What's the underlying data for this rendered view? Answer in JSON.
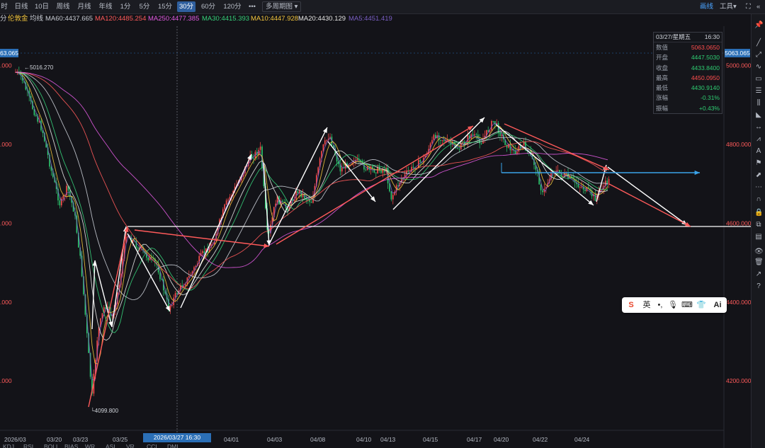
{
  "toolbar": {
    "timeframes": [
      {
        "label": "时",
        "active": false
      },
      {
        "label": "日线",
        "active": false
      },
      {
        "label": "10日",
        "active": false
      },
      {
        "label": "周线",
        "active": false
      },
      {
        "label": "月线",
        "active": false
      },
      {
        "label": "年线",
        "active": false
      },
      {
        "label": "1分",
        "active": false
      },
      {
        "label": "5分",
        "active": false
      },
      {
        "label": "15分",
        "active": false
      },
      {
        "label": "30分",
        "active": true
      },
      {
        "label": "60分",
        "active": false
      },
      {
        "label": "120分",
        "active": false
      }
    ],
    "more_label": "•••",
    "multi_period_label": "多周期图",
    "draw_label": "画线",
    "tools_label": "工具"
  },
  "indicator_row": {
    "prefix": "分",
    "symbol": "伦敦金",
    "ma_label": "均线",
    "items": [
      {
        "label": "MA60:4437.665",
        "color": "#c8ccd4"
      },
      {
        "label": "MA120:4485.254",
        "color": "#ff5a5a"
      },
      {
        "label": "MA250:4477.385",
        "color": "#e05ae0"
      },
      {
        "label": "MA30:4415.393",
        "color": "#36d07a"
      },
      {
        "label": "MA10:4447.928",
        "color": "#f2c53d"
      },
      {
        "label": "MA20:4430.129",
        "color": "#e6e6e6"
      },
      {
        "label": "MA5:4451.419",
        "color": "#7a5fc4"
      }
    ]
  },
  "price_axis_right": [
    "5000.000",
    "4800.000",
    "4600.000",
    "4400.000",
    "4200.000"
  ],
  "price_axis_left": [
    ".000",
    ".000",
    ".000",
    ".000",
    ".000"
  ],
  "current_price": {
    "left": "63.065",
    "right": "5063.065"
  },
  "annotations": {
    "high": "5016.270",
    "low": "4099.800"
  },
  "date_axis": [
    "2026/03",
    "03/20",
    "03/23",
    "03/25",
    "04/01",
    "04/03",
    "04/08",
    "04/10",
    "04/13",
    "04/15",
    "04/17",
    "04/20",
    "04/22",
    "04/24"
  ],
  "crosshair_date": "2026/03/27 16:30",
  "info_panel": {
    "date": "03/27/星期五",
    "time": "16:30",
    "rows": [
      {
        "label": "数值",
        "value": "5063.0650",
        "color": "#ff4d4d"
      },
      {
        "label": "开盘",
        "value": "4447.5030",
        "color": "#2ecc71"
      },
      {
        "label": "收盘",
        "value": "4433.8400",
        "color": "#2ecc71"
      },
      {
        "label": "最高",
        "value": "4450.0950",
        "color": "#ff4d4d"
      },
      {
        "label": "最低",
        "value": "4430.9140",
        "color": "#2ecc71"
      },
      {
        "label": "涨幅",
        "value": "-0.31%",
        "color": "#2ecc71"
      },
      {
        "label": "振幅",
        "value": "+0.43%",
        "color": "#2ecc71"
      }
    ]
  },
  "ime_bar": {
    "lang": "英",
    "ai": "Ai"
  },
  "bottom_tabs": [
    "KDJ",
    "RSI",
    "BOLL",
    "BIAS",
    "WR",
    "ASI",
    "VR",
    "CCI",
    "DMI"
  ],
  "chart_data": {
    "type": "candlestick",
    "y_range": [
      4080,
      5100
    ],
    "series": [
      {
        "name": "MA5",
        "color": "#7a5fc4"
      },
      {
        "name": "MA10",
        "color": "#f2c53d"
      },
      {
        "name": "MA20",
        "color": "#e6e6e6"
      },
      {
        "name": "MA30",
        "color": "#36d07a"
      },
      {
        "name": "MA60",
        "color": "#c8ccd4"
      },
      {
        "name": "MA120",
        "color": "#ff5a5a"
      },
      {
        "name": "MA250",
        "color": "#e05ae0"
      }
    ],
    "horizontal_lines": [
      4600
    ],
    "colors": {
      "up": "#ff4d4d",
      "down": "#2ecc71",
      "arrow_white": "#ffffff",
      "arrow_red": "#ff5a5a",
      "arrow_blue": "#3aa3e8"
    }
  }
}
